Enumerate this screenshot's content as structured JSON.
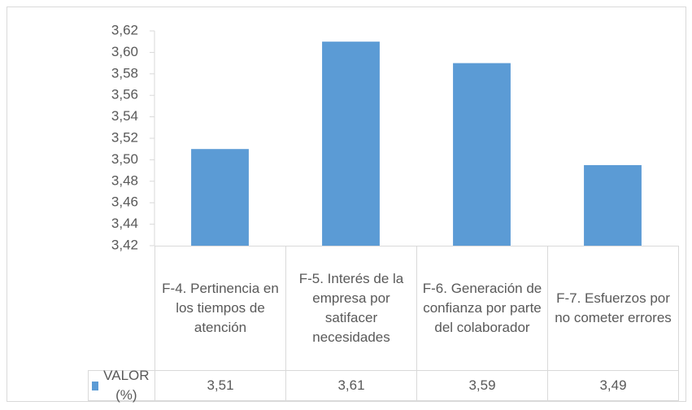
{
  "chart_data": {
    "type": "bar",
    "categories": [
      "F-4. Pertinencia en los tiempos de atención",
      "F-5. Interés de la empresa por satifacer necesidades",
      "F-6. Generación de confianza por parte del colaborador",
      "F-7. Esfuerzos por no cometer errores"
    ],
    "series": [
      {
        "name": "VALOR (%)",
        "color": "#5b9bd5",
        "values": [
          3.51,
          3.61,
          3.59,
          3.495
        ],
        "value_labels": [
          "3,51",
          "3,61",
          "3,59",
          "3,49"
        ]
      }
    ],
    "ylim": [
      3.42,
      3.62
    ],
    "yticks": [
      {
        "value": 3.42,
        "label": "3,42"
      },
      {
        "value": 3.44,
        "label": "3,44"
      },
      {
        "value": 3.46,
        "label": "3,46"
      },
      {
        "value": 3.48,
        "label": "3,48"
      },
      {
        "value": 3.5,
        "label": "3,50"
      },
      {
        "value": 3.52,
        "label": "3,52"
      },
      {
        "value": 3.54,
        "label": "3,54"
      },
      {
        "value": 3.56,
        "label": "3,56"
      },
      {
        "value": 3.58,
        "label": "3,58"
      },
      {
        "value": 3.6,
        "label": "3,60"
      },
      {
        "value": 3.62,
        "label": "3,62"
      }
    ],
    "grid": false
  }
}
